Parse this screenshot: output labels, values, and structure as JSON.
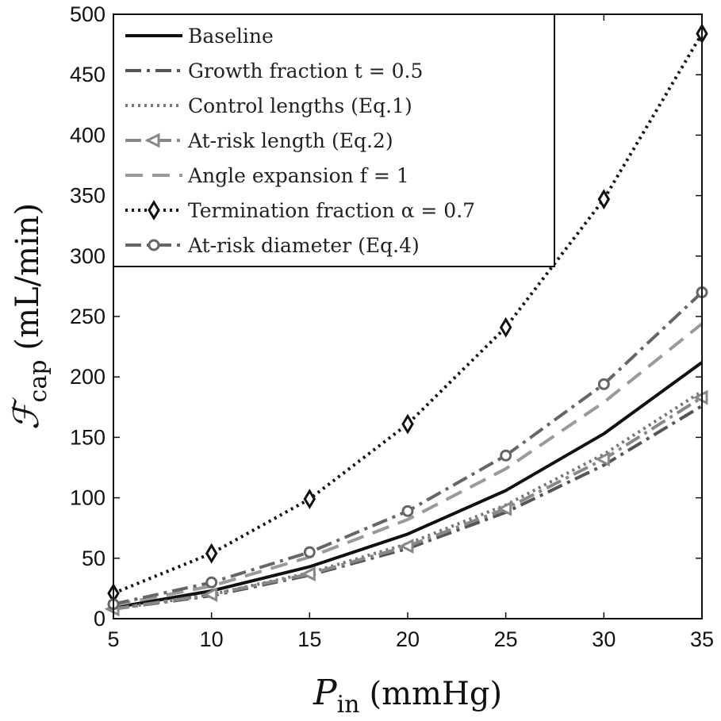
{
  "chart_data": {
    "type": "line",
    "x": [
      5,
      10,
      15,
      20,
      25,
      30,
      35
    ],
    "xlabel": {
      "symbol": "P",
      "subscript": "in",
      "unit": "(mmHg)"
    },
    "ylabel": {
      "symbol": "ℱ",
      "subscript": "cap",
      "unit": "(mL/min)"
    },
    "xlim": [
      5,
      35
    ],
    "ylim": [
      0,
      500
    ],
    "xticks": [
      5,
      10,
      15,
      20,
      25,
      30,
      35
    ],
    "yticks": [
      0,
      50,
      100,
      150,
      200,
      250,
      300,
      350,
      400,
      450,
      500
    ],
    "grid": false,
    "legend_position": "top-left",
    "series": [
      {
        "name": "Baseline",
        "values": [
          9,
          23,
          43,
          70,
          106,
          153,
          212
        ],
        "color": "#111111",
        "dash": "solid",
        "marker": "none"
      },
      {
        "name": "Growth fraction t = 0.5",
        "values": [
          8,
          19,
          36,
          58,
          88,
          127,
          176
        ],
        "color": "#555555",
        "dash": "dashdot",
        "marker": "none"
      },
      {
        "name": "Control lengths (Eq.1)",
        "values": [
          8,
          20,
          38,
          62,
          94,
          136,
          188
        ],
        "color": "#777777",
        "dash": "dot",
        "marker": "none"
      },
      {
        "name": "At-risk length (Eq.2)",
        "values": [
          8,
          20,
          37,
          60,
          91,
          132,
          183
        ],
        "color": "#888888",
        "dash": "dashdot",
        "marker": "triangle-left"
      },
      {
        "name": "Angle expansion f = 1",
        "values": [
          11,
          27,
          51,
          82,
          124,
          179,
          244
        ],
        "color": "#9a9a9a",
        "dash": "dash",
        "marker": "none"
      },
      {
        "name": "Termination fraction α = 0.7",
        "values": [
          21,
          54,
          99,
          161,
          241,
          347,
          484
        ],
        "color": "#111111",
        "dash": "dot",
        "marker": "diamond"
      },
      {
        "name": "At-risk diameter (Eq.4)",
        "values": [
          12,
          30,
          55,
          89,
          135,
          194,
          270
        ],
        "color": "#666666",
        "dash": "dashdot",
        "marker": "circle"
      }
    ]
  }
}
